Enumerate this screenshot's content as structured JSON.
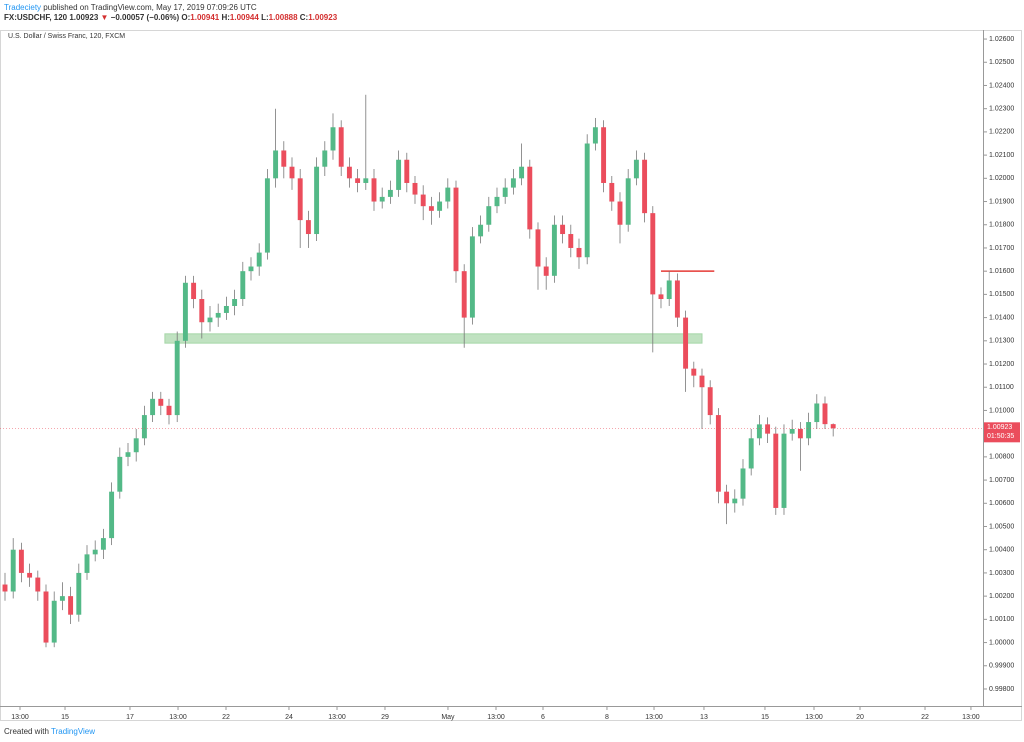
{
  "header": {
    "author": "Tradeciety",
    "published": "published on TradingView.com, May 17, 2019 07:09:26 UTC",
    "symbol": "FX:USDCHF, 120",
    "arrow": "▼",
    "change": "−0.00057 (−0.06%)",
    "ohlc_labels": [
      "O:",
      "H:",
      "L:",
      "C:"
    ]
  },
  "footer": {
    "created": "Created with",
    "brand": "TradingView"
  },
  "chart_data": {
    "type": "candlestick",
    "title": "U.S. Dollar / Swiss Franc, 120, FXCM",
    "countdown": "01:50:35",
    "up_color": "#53b987",
    "down_color": "#eb4d5c",
    "grid": false,
    "xlim": [
      -0.61,
      119.27
    ],
    "xticks": [
      {
        "value": 1.83,
        "label": "13:00"
      },
      {
        "value": 7.32,
        "label": "15"
      },
      {
        "value": 15.24,
        "label": "17"
      },
      {
        "value": 21.1,
        "label": "13:00"
      },
      {
        "value": 26.95,
        "label": "22"
      },
      {
        "value": 34.63,
        "label": "24"
      },
      {
        "value": 40.49,
        "label": "13:00"
      },
      {
        "value": 46.34,
        "label": "29"
      },
      {
        "value": 54.02,
        "label": "May"
      },
      {
        "value": 59.88,
        "label": "13:00"
      },
      {
        "value": 65.61,
        "label": "6"
      },
      {
        "value": 73.41,
        "label": "8"
      },
      {
        "value": 79.15,
        "label": "13:00"
      },
      {
        "value": 85.24,
        "label": "13"
      },
      {
        "value": 92.68,
        "label": "15"
      },
      {
        "value": 98.66,
        "label": "13:00"
      },
      {
        "value": 104.27,
        "label": "20"
      },
      {
        "value": 112.2,
        "label": "22"
      },
      {
        "value": 117.8,
        "label": "13:00"
      }
    ],
    "ylim": [
      0.99731,
      1.02639
    ],
    "yticks": [
      {
        "value": 0.998,
        "label": "0.99800"
      },
      {
        "value": 0.999,
        "label": "0.99900"
      },
      {
        "value": 1,
        "label": "1.00000"
      },
      {
        "value": 1.001,
        "label": "1.00100"
      },
      {
        "value": 1.002,
        "label": "1.00200"
      },
      {
        "value": 1.003,
        "label": "1.00300"
      },
      {
        "value": 1.004,
        "label": "1.00400"
      },
      {
        "value": 1.005,
        "label": "1.00500"
      },
      {
        "value": 1.006,
        "label": "1.00600"
      },
      {
        "value": 1.007,
        "label": "1.00700"
      },
      {
        "value": 1.008,
        "label": "1.00800"
      },
      {
        "value": 1.009,
        "label": "1.00900"
      },
      {
        "value": 1.01,
        "label": "1.01000"
      },
      {
        "value": 1.011,
        "label": "1.01100"
      },
      {
        "value": 1.012,
        "label": "1.01200"
      },
      {
        "value": 1.013,
        "label": "1.01300"
      },
      {
        "value": 1.014,
        "label": "1.01400"
      },
      {
        "value": 1.015,
        "label": "1.01500"
      },
      {
        "value": 1.016,
        "label": "1.01600"
      },
      {
        "value": 1.017,
        "label": "1.01700"
      },
      {
        "value": 1.018,
        "label": "1.01800"
      },
      {
        "value": 1.019,
        "label": "1.01900"
      },
      {
        "value": 1.02,
        "label": "1.02000"
      },
      {
        "value": 1.021,
        "label": "1.02100"
      },
      {
        "value": 1.022,
        "label": "1.02200"
      },
      {
        "value": 1.023,
        "label": "1.02300"
      },
      {
        "value": 1.024,
        "label": "1.02400"
      },
      {
        "value": 1.025,
        "label": "1.02500"
      },
      {
        "value": 1.026,
        "label": "1.02600"
      }
    ],
    "zones": [
      {
        "x": [
          19.5,
          85
        ],
        "y": [
          1.0129,
          1.0133
        ],
        "color": "#a5d6a7"
      }
    ],
    "levels": [
      {
        "x": [
          80,
          86.5
        ],
        "y": 1.016,
        "color": "#e53935"
      }
    ],
    "open": [
      1.0025,
      1.0022,
      1.004,
      1.003,
      1.0028,
      1.0022,
      1,
      1.0018,
      1.002,
      1.0012,
      1.003,
      1.0038,
      1.004,
      1.0045,
      1.0065,
      1.008,
      1.0082,
      1.0088,
      1.0098,
      1.0105,
      1.0102,
      1.0098,
      1.013,
      1.0155,
      1.0148,
      1.0138,
      1.014,
      1.0142,
      1.0145,
      1.0148,
      1.016,
      1.0162,
      1.0168,
      1.02,
      1.0212,
      1.0205,
      1.02,
      1.0182,
      1.0176,
      1.0205,
      1.0212,
      1.0222,
      1.0205,
      1.02,
      1.0198,
      1.02,
      1.019,
      1.0192,
      1.0195,
      1.0208,
      1.0198,
      1.0193,
      1.0188,
      1.0186,
      1.019,
      1.0196,
      1.016,
      1.014,
      1.0175,
      1.018,
      1.0188,
      1.0192,
      1.0196,
      1.02,
      1.0205,
      1.0178,
      1.0162,
      1.0158,
      1.018,
      1.0176,
      1.017,
      1.0166,
      1.0215,
      1.0222,
      1.0198,
      1.019,
      1.018,
      1.02,
      1.0208,
      1.0185,
      1.015,
      1.0148,
      1.0156,
      1.014,
      1.0118,
      1.0115,
      1.011,
      1.0098,
      1.0065,
      1.006,
      1.0062,
      1.0075,
      1.0088,
      1.0094,
      1.009,
      1.0058,
      1.009,
      1.0092,
      1.0088,
      1.0095,
      1.0103,
      1.00941
    ],
    "high": [
      1.003,
      1.0045,
      1.0043,
      1.0034,
      1.0031,
      1.0025,
      1.0022,
      1.0026,
      1.0024,
      1.0034,
      1.0042,
      1.0044,
      1.0049,
      1.0069,
      1.0084,
      1.0086,
      1.0092,
      1.0102,
      1.0108,
      1.0108,
      1.0105,
      1.0134,
      1.0158,
      1.0158,
      1.0152,
      1.0145,
      1.0146,
      1.0149,
      1.0152,
      1.0164,
      1.0166,
      1.0172,
      1.0204,
      1.023,
      1.0216,
      1.0209,
      1.0204,
      1.0186,
      1.0209,
      1.0216,
      1.0228,
      1.0225,
      1.0209,
      1.0204,
      1.0236,
      1.0204,
      1.0196,
      1.0199,
      1.0212,
      1.0211,
      1.0201,
      1.0197,
      1.0192,
      1.0194,
      1.02,
      1.0199,
      1.0163,
      1.0179,
      1.0184,
      1.0192,
      1.0196,
      1.02,
      1.0204,
      1.0215,
      1.0208,
      1.0181,
      1.0166,
      1.0184,
      1.0184,
      1.018,
      1.0174,
      1.0219,
      1.0226,
      1.0225,
      1.0201,
      1.0194,
      1.0204,
      1.0212,
      1.0211,
      1.0188,
      1.0153,
      1.016,
      1.0159,
      1.0143,
      1.0121,
      1.0118,
      1.0113,
      1.0101,
      1.0068,
      1.0066,
      1.0079,
      1.0092,
      1.0098,
      1.0097,
      1.0093,
      1.0094,
      1.0096,
      1.0095,
      1.0099,
      1.0107,
      1.0106,
      1.00944
    ],
    "low": [
      1.0018,
      1.0019,
      1.0026,
      1.0024,
      1.0018,
      0.9998,
      0.9998,
      1.0014,
      1.0008,
      1.0009,
      1.0027,
      1.0035,
      1.0036,
      1.0042,
      1.0062,
      1.0076,
      1.0078,
      1.0085,
      1.0095,
      1.0098,
      1.0094,
      1.0095,
      1.0127,
      1.0144,
      1.0131,
      1.0134,
      1.0136,
      1.0139,
      1.0141,
      1.0145,
      1.0156,
      1.0158,
      1.0165,
      1.0196,
      1.02,
      1.0195,
      1.017,
      1.017,
      1.0173,
      1.0201,
      1.0208,
      1.0201,
      1.0196,
      1.0194,
      1.0195,
      1.0186,
      1.0187,
      1.0189,
      1.0192,
      1.0194,
      1.0189,
      1.0182,
      1.018,
      1.0183,
      1.0187,
      1.0155,
      1.0127,
      1.0137,
      1.0172,
      1.0177,
      1.0185,
      1.0189,
      1.0193,
      1.0197,
      1.0174,
      1.0152,
      1.0152,
      1.0155,
      1.0172,
      1.0166,
      1.0161,
      1.0163,
      1.0212,
      1.0194,
      1.0186,
      1.0172,
      1.0177,
      1.0197,
      1.0181,
      1.0125,
      1.0144,
      1.0145,
      1.0136,
      1.0108,
      1.011,
      1.0092,
      1.0094,
      1.006,
      1.0051,
      1.0056,
      1.0059,
      1.0072,
      1.0085,
      1.0086,
      1.0055,
      1.0055,
      1.0087,
      1.0074,
      1.0085,
      1.0092,
      1.0092,
      1.00888
    ],
    "close": [
      1.0022,
      1.004,
      1.003,
      1.0028,
      1.0022,
      1,
      1.0018,
      1.002,
      1.0012,
      1.003,
      1.0038,
      1.004,
      1.0045,
      1.0065,
      1.008,
      1.0082,
      1.0088,
      1.0098,
      1.0105,
      1.0102,
      1.0098,
      1.013,
      1.0155,
      1.0148,
      1.0138,
      1.014,
      1.0142,
      1.0145,
      1.0148,
      1.016,
      1.0162,
      1.0168,
      1.02,
      1.0212,
      1.0205,
      1.02,
      1.0182,
      1.0176,
      1.0205,
      1.0212,
      1.0222,
      1.0205,
      1.02,
      1.0198,
      1.02,
      1.019,
      1.0192,
      1.0195,
      1.0208,
      1.0198,
      1.0193,
      1.0188,
      1.0186,
      1.019,
      1.0196,
      1.016,
      1.014,
      1.0175,
      1.018,
      1.0188,
      1.0192,
      1.0196,
      1.02,
      1.0205,
      1.0178,
      1.0162,
      1.0158,
      1.018,
      1.0176,
      1.017,
      1.0166,
      1.0215,
      1.0222,
      1.0198,
      1.019,
      1.018,
      1.02,
      1.0208,
      1.0185,
      1.015,
      1.0148,
      1.0156,
      1.014,
      1.0118,
      1.0115,
      1.011,
      1.0098,
      1.0065,
      1.006,
      1.0062,
      1.0075,
      1.0088,
      1.0094,
      1.009,
      1.0058,
      1.009,
      1.0092,
      1.0088,
      1.0095,
      1.0103,
      1.00941,
      1.00923
    ]
  }
}
